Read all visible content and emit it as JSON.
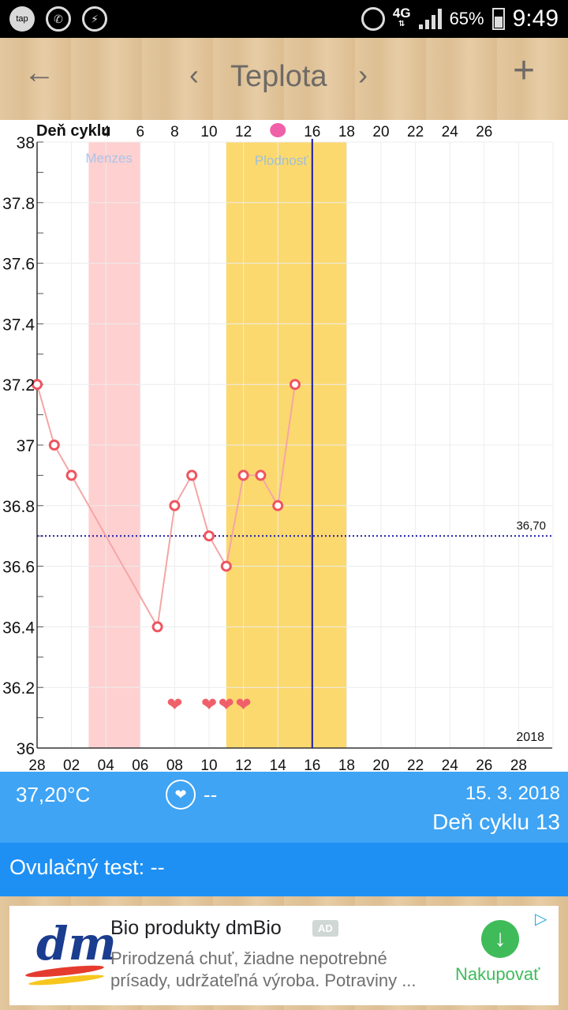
{
  "status_bar": {
    "tap_icon_label": "tap",
    "network": "4G",
    "battery_percent": "65%",
    "time": "9:49"
  },
  "toolbar": {
    "back_icon": "←",
    "prev_icon": "‹",
    "title": "Teplota",
    "next_icon": "›",
    "add_icon": "+"
  },
  "chart_data": {
    "type": "line",
    "title": "",
    "top_axis_label": "Deň cyklu",
    "top_axis_ticks": [
      "4",
      "6",
      "8",
      "10",
      "12",
      "16",
      "18",
      "20",
      "22",
      "24",
      "26"
    ],
    "bottom_axis_ticks": [
      "28",
      "02",
      "04",
      "06",
      "08",
      "10",
      "12",
      "14",
      "16",
      "18",
      "20",
      "22",
      "24",
      "26",
      "28"
    ],
    "y_ticks": [
      "38",
      "37.8",
      "37.6",
      "37.4",
      "37.2",
      "37",
      "36.8",
      "36.6",
      "36.4",
      "36.2",
      "36"
    ],
    "ylim": [
      36,
      38
    ],
    "year_label": "2018",
    "menses_label": "Menzes",
    "fertile_label": "Plodnosť",
    "reference_line": {
      "value": 36.7,
      "label": "36,70"
    },
    "points": [
      {
        "day": 1,
        "value": 37.2
      },
      {
        "day": 2,
        "value": 37.0
      },
      {
        "day": 3,
        "value": 36.9
      },
      {
        "day": 8,
        "value": 36.4
      },
      {
        "day": 9,
        "value": 36.8
      },
      {
        "day": 10,
        "value": 36.9
      },
      {
        "day": 11,
        "value": 36.7
      },
      {
        "day": 12,
        "value": 36.6
      },
      {
        "day": 13,
        "value": 36.9
      },
      {
        "day": 14,
        "value": 36.9
      },
      {
        "day": 15,
        "value": 36.8
      },
      {
        "day": 16,
        "value": 37.2
      }
    ],
    "intercourse_days": [
      9,
      11,
      12,
      13
    ],
    "menses_range": [
      4,
      6
    ],
    "fertile_range": [
      12,
      18
    ],
    "current_day": 17,
    "colors": {
      "line": "#f4a6a6",
      "point": "#ee5560",
      "menses": "#ffd0d0",
      "fertile": "#fbd96e",
      "reference": "#1a1aa6",
      "current": "#1a1aa6",
      "heart": "#f0606a",
      "today_marker": "#f060a8"
    }
  },
  "info_bar": {
    "temperature": "37,20°C",
    "intercourse_value": "--",
    "date": "15. 3. 2018",
    "cycle_day": "Deň cyklu 13"
  },
  "ovulation": {
    "text": "Ovulačný test: --"
  },
  "ad": {
    "logo_text": "dm",
    "title": "Bio produkty dmBio",
    "badge": "AD",
    "desc_line1": "Prirodzená chuť, žiadne nepotrebné",
    "desc_line2": "prísady, udržateľná výroba. Potraviny ...",
    "cta_label": "Nakupovať"
  }
}
